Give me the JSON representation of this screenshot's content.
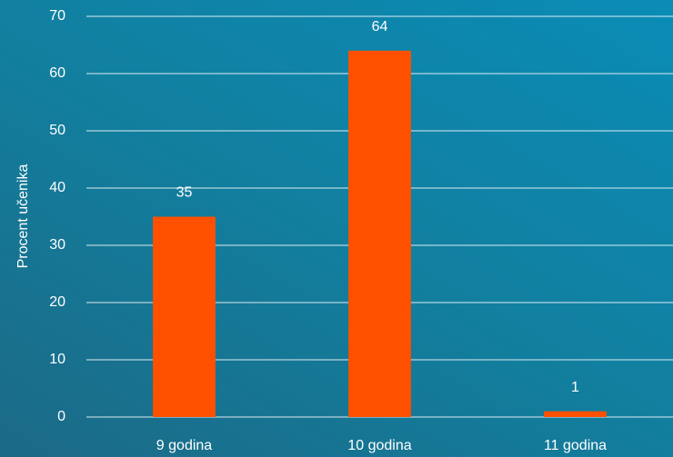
{
  "chart_data": {
    "type": "bar",
    "y_label": "Procent učenika",
    "categories": [
      "9 godina",
      "10 godina",
      "11 godina"
    ],
    "values": [
      35,
      64,
      1
    ],
    "color": "#ff5000",
    "ylim": [
      0,
      70
    ],
    "yticks": [
      0,
      10,
      20,
      30,
      40,
      50,
      60,
      70
    ],
    "grid": true,
    "data_labels": true
  }
}
